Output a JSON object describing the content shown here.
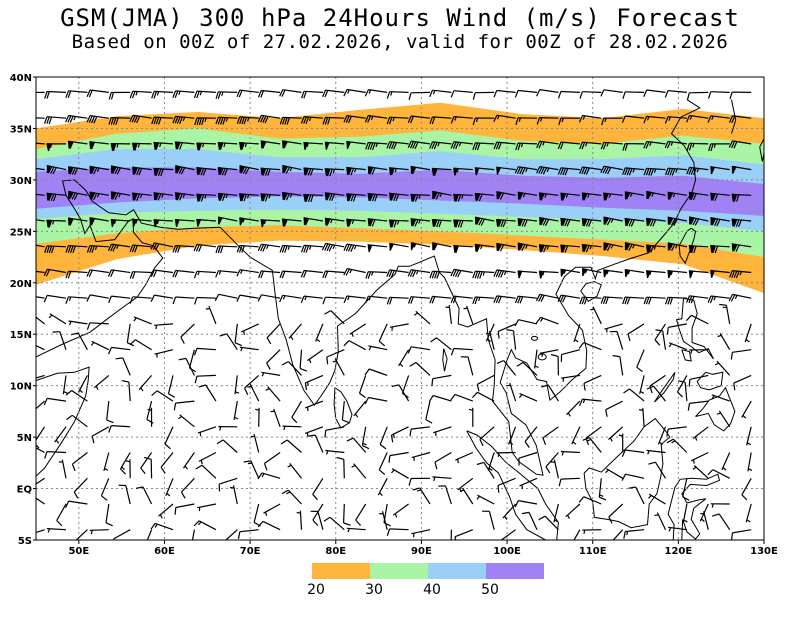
{
  "header": {
    "title": "GSM(JMA) 300 hPa 24Hours Wind (m/s) Forecast",
    "subtitle": "Based on 00Z of 27.02.2026, valid for 00Z of 28.02.2026"
  },
  "map": {
    "lon_range": [
      45,
      130
    ],
    "lat_range": [
      -5,
      40
    ],
    "lon_ticks": [
      {
        "value": 50,
        "label": "50E"
      },
      {
        "value": 60,
        "label": "60E"
      },
      {
        "value": 70,
        "label": "70E"
      },
      {
        "value": 80,
        "label": "80E"
      },
      {
        "value": 90,
        "label": "90E"
      },
      {
        "value": 100,
        "label": "100E"
      },
      {
        "value": 110,
        "label": "110E"
      },
      {
        "value": 120,
        "label": "120E"
      },
      {
        "value": 130,
        "label": "130E"
      }
    ],
    "lat_ticks": [
      {
        "value": -5,
        "label": "5S"
      },
      {
        "value": 0,
        "label": "EQ"
      },
      {
        "value": 5,
        "label": "5N"
      },
      {
        "value": 10,
        "label": "10N"
      },
      {
        "value": 15,
        "label": "15N"
      },
      {
        "value": 20,
        "label": "20N"
      },
      {
        "value": 25,
        "label": "25N"
      },
      {
        "value": 30,
        "label": "30N"
      },
      {
        "value": 35,
        "label": "35N"
      },
      {
        "value": 40,
        "label": "40N"
      }
    ],
    "grid": true,
    "jet_bands": [
      {
        "level": 20,
        "color": "#ffb43c",
        "north": [
          35.0,
          36.2,
          36.6,
          36.0,
          36.8,
          37.5,
          36.4,
          36.0,
          36.9,
          36.0
        ],
        "south": [
          19.8,
          22.3,
          23.6,
          24.1,
          24.0,
          23.7,
          23.2,
          22.6,
          21.8,
          19.0
        ]
      },
      {
        "level": 30,
        "color": "#aaf5a5",
        "north": [
          33.0,
          34.5,
          35.0,
          34.0,
          34.2,
          34.8,
          33.8,
          33.5,
          34.3,
          33.5
        ],
        "south": [
          23.8,
          24.8,
          25.4,
          25.6,
          25.3,
          25.0,
          24.6,
          24.2,
          23.8,
          22.5
        ]
      },
      {
        "level": 40,
        "color": "#9ad0f8",
        "north": [
          32.0,
          33.0,
          33.0,
          32.2,
          32.2,
          32.8,
          32.0,
          32.0,
          32.4,
          31.5
        ],
        "south": [
          26.2,
          26.8,
          27.0,
          27.1,
          27.0,
          26.7,
          26.4,
          26.1,
          25.8,
          25.0
        ]
      },
      {
        "level": 50,
        "color": "#a082f5",
        "north": [
          30.8,
          31.2,
          31.2,
          30.8,
          30.6,
          31.0,
          30.4,
          30.2,
          30.4,
          29.6
        ],
        "south": [
          27.2,
          27.8,
          28.2,
          28.4,
          28.3,
          28.0,
          27.7,
          27.3,
          27.0,
          26.5
        ]
      }
    ]
  },
  "legend": {
    "items": [
      {
        "label": "20",
        "color": "#ffb43c"
      },
      {
        "label": "30",
        "color": "#aaf5a5"
      },
      {
        "label": "40",
        "color": "#9ad0f8"
      },
      {
        "label": "50",
        "color": "#a082f5"
      }
    ]
  }
}
